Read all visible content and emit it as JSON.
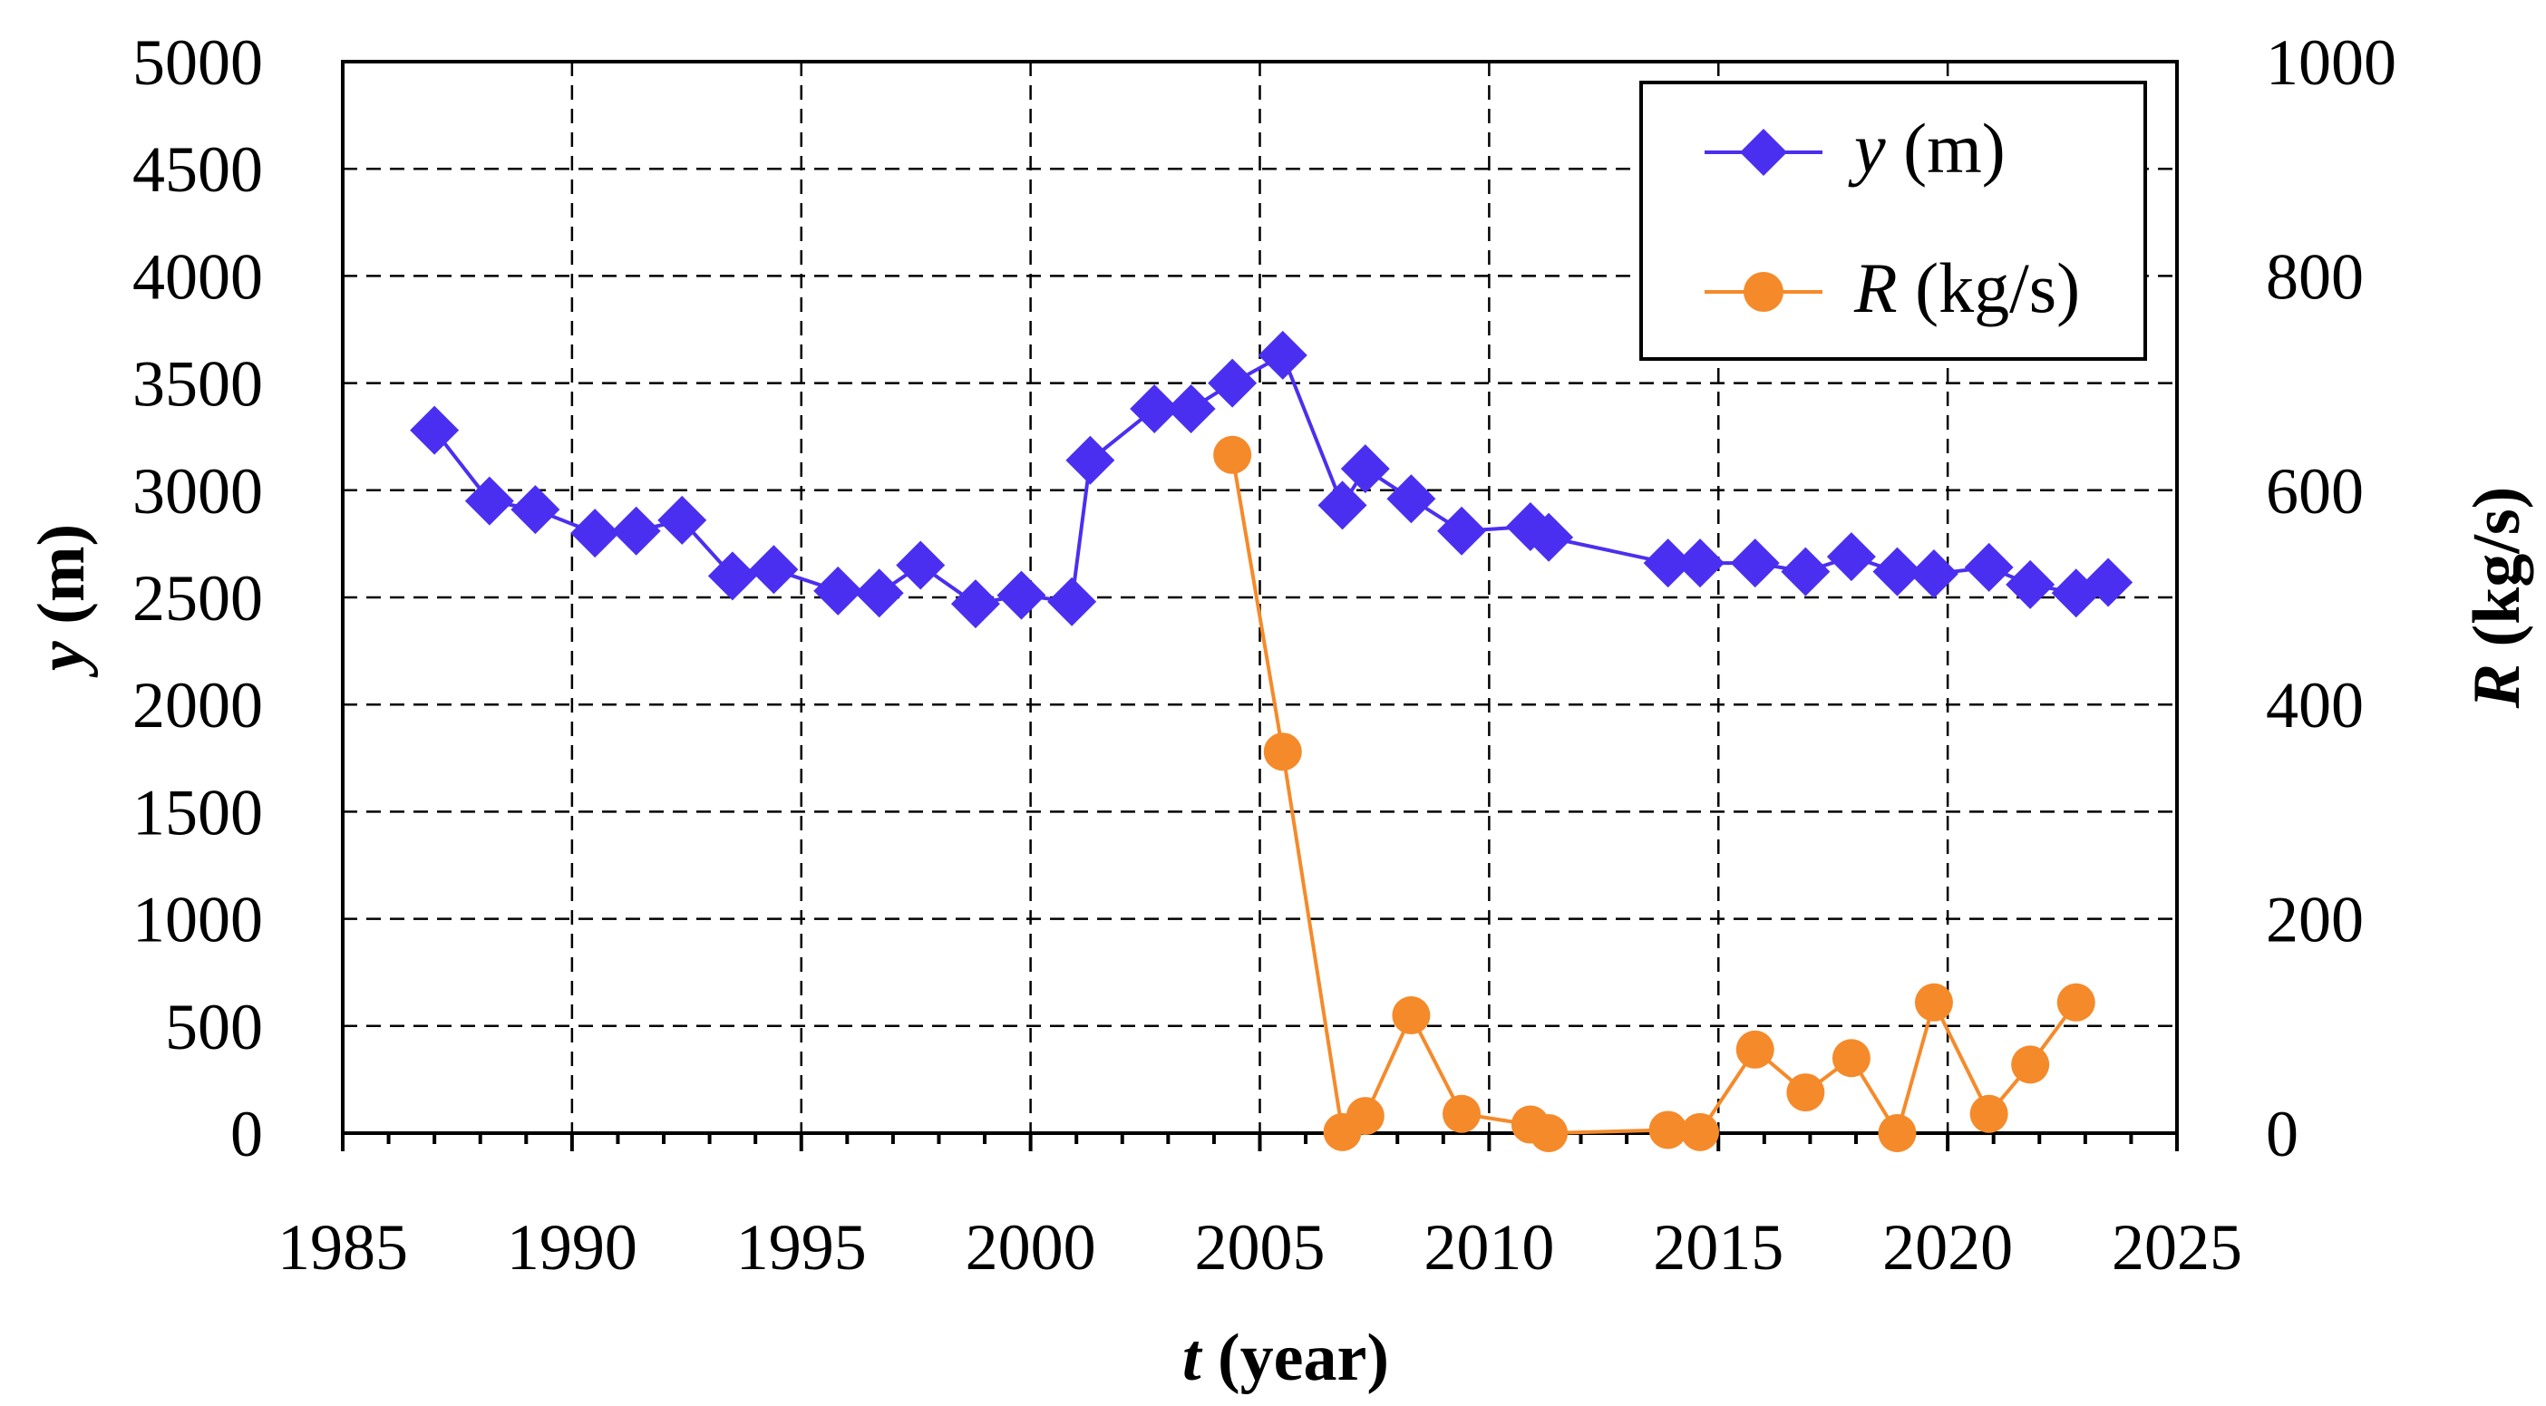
{
  "chart_data": {
    "type": "line",
    "title": "",
    "xlabel": {
      "var": "t",
      "unit": " (year)"
    },
    "ylabel_left": {
      "var": "y",
      "unit": " (m)"
    },
    "ylabel_right": {
      "var": "R",
      "unit": " (kg/s)"
    },
    "xlim": [
      1985,
      2025
    ],
    "ylim_left": [
      0,
      5000
    ],
    "ylim_right": [
      0,
      1000
    ],
    "x_ticks": [
      "1985",
      "1990",
      "1995",
      "2000",
      "2005",
      "2010",
      "2015",
      "2020",
      "2025"
    ],
    "y_left_ticks": [
      "0",
      "500",
      "1000",
      "1500",
      "2000",
      "2500",
      "3000",
      "3500",
      "4000",
      "4500",
      "5000"
    ],
    "y_right_ticks": [
      "0",
      "200",
      "400",
      "600",
      "800",
      "1000"
    ],
    "grid": true,
    "legend_position": "top-right",
    "series": [
      {
        "name": "y (m)",
        "legend_var": "y",
        "legend_unit": " (m)",
        "axis": "left",
        "color": "#4b2ff0",
        "marker": "diamond",
        "x": [
          1987.0,
          1988.2,
          1989.2,
          1990.5,
          1991.4,
          1992.4,
          1993.5,
          1994.4,
          1995.8,
          1996.7,
          1997.6,
          1998.8,
          1999.8,
          2000.9,
          2001.3,
          2002.7,
          2003.5,
          2004.4,
          2005.5,
          2006.8,
          2007.3,
          2008.3,
          2009.4,
          2010.9,
          2011.3,
          2013.9,
          2014.6,
          2015.8,
          2016.9,
          2017.9,
          2018.9,
          2019.7,
          2020.9,
          2021.8,
          2022.8,
          2023.5
        ],
        "values": [
          3280,
          2950,
          2910,
          2800,
          2810,
          2860,
          2600,
          2630,
          2530,
          2520,
          2650,
          2470,
          2510,
          2480,
          3140,
          3380,
          3380,
          3500,
          3630,
          2930,
          3100,
          2960,
          2810,
          2830,
          2780,
          2660,
          2660,
          2660,
          2620,
          2690,
          2620,
          2610,
          2640,
          2560,
          2520,
          2570
        ]
      },
      {
        "name": "R (kg/s)",
        "legend_var": "R",
        "legend_unit": " (kg/s)",
        "axis": "right",
        "color": "#f58a2a",
        "marker": "circle",
        "x": [
          2004.4,
          2005.5,
          2006.8,
          2007.3,
          2008.3,
          2009.4,
          2010.9,
          2011.3,
          2013.9,
          2014.6,
          2015.8,
          2016.9,
          2017.9,
          2018.9,
          2019.7,
          2020.9,
          2021.8,
          2022.8
        ],
        "values": [
          633,
          356,
          1,
          16,
          110,
          18,
          8,
          0,
          3,
          1,
          78,
          38,
          70,
          0,
          122,
          18,
          64,
          122
        ]
      }
    ]
  }
}
